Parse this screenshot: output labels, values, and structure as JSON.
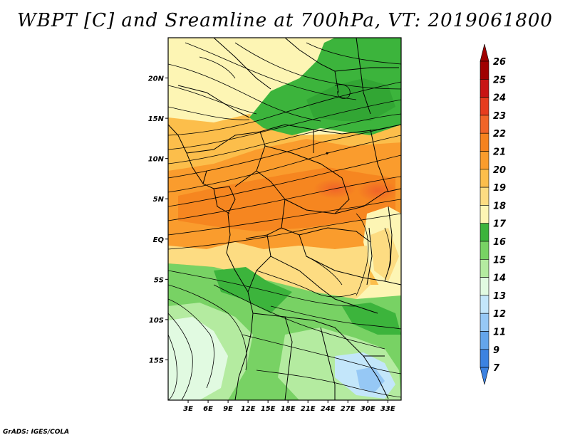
{
  "title": "WBPT [C] and Sreamline at 700hPa, VT: 2019061800",
  "credit": "GrADS: IGES/COLA",
  "map": {
    "lon_range": [
      0,
      35
    ],
    "lat_range": [
      -20,
      25
    ],
    "lat_ticks": [
      {
        "lat": 20,
        "label": "20N"
      },
      {
        "lat": 15,
        "label": "15N"
      },
      {
        "lat": 10,
        "label": "10N"
      },
      {
        "lat": 5,
        "label": "5N"
      },
      {
        "lat": 0,
        "label": "EQ"
      },
      {
        "lat": -5,
        "label": "5S"
      },
      {
        "lat": -10,
        "label": "10S"
      },
      {
        "lat": -15,
        "label": "15S"
      }
    ],
    "lon_ticks": [
      {
        "lon": 3,
        "label": "3E"
      },
      {
        "lon": 6,
        "label": "6E"
      },
      {
        "lon": 9,
        "label": "9E"
      },
      {
        "lon": 12,
        "label": "12E"
      },
      {
        "lon": 15,
        "label": "15E"
      },
      {
        "lon": 18,
        "label": "18E"
      },
      {
        "lon": 21,
        "label": "21E"
      },
      {
        "lon": 24,
        "label": "24E"
      },
      {
        "lon": 27,
        "label": "27E"
      },
      {
        "lon": 30,
        "label": "30E"
      },
      {
        "lon": 33,
        "label": "33E"
      }
    ]
  },
  "colorbar": {
    "levels": [
      {
        "label": "26",
        "color": "#a00000"
      },
      {
        "label": "25",
        "color": "#c81414"
      },
      {
        "label": "24",
        "color": "#e63c1e"
      },
      {
        "label": "23",
        "color": "#f06428"
      },
      {
        "label": "22",
        "color": "#f5821e"
      },
      {
        "label": "21",
        "color": "#fa9c2d"
      },
      {
        "label": "20",
        "color": "#fcbe4b"
      },
      {
        "label": "19",
        "color": "#fddc82"
      },
      {
        "label": "18",
        "color": "#fdf5b4"
      },
      {
        "label": "17",
        "color": "#3cb43c"
      },
      {
        "label": "16",
        "color": "#78d264"
      },
      {
        "label": "15",
        "color": "#b4eba0"
      },
      {
        "label": "14",
        "color": "#e1fae1"
      },
      {
        "label": "13",
        "color": "#c3e6fa"
      },
      {
        "label": "12",
        "color": "#96c8f5"
      },
      {
        "label": "11",
        "color": "#64a5eb"
      },
      {
        "label": "9",
        "color": "#3c82e1"
      },
      {
        "label": "7",
        "color": "#1e5ad2"
      }
    ],
    "top_color": "#a00000",
    "bottom_color": "#3c82e1"
  }
}
